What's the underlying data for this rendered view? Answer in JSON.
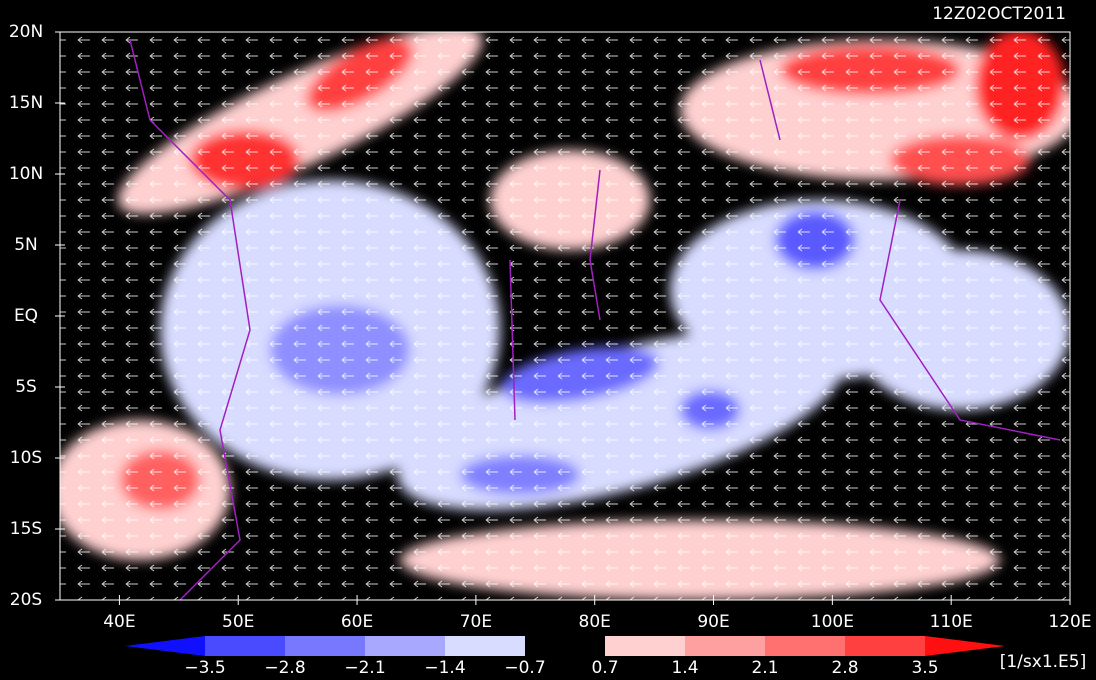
{
  "header": {
    "title": "12Z02OCT2011"
  },
  "lat_labels": [
    "20N",
    "15N",
    "10N",
    "5N",
    "EQ",
    "5S",
    "10S",
    "15S",
    "20S"
  ],
  "lon_labels": [
    "40E",
    "50E",
    "60E",
    "70E",
    "80E",
    "90E",
    "100E",
    "110E",
    "120E"
  ],
  "colorbar": {
    "labels": [
      "−3.5",
      "−2.8",
      "−2.1",
      "−1.4",
      "−0.7",
      "0.7",
      "1.4",
      "2.1",
      "2.8",
      "3.5"
    ],
    "units": "[1/sx1.E5]"
  }
}
